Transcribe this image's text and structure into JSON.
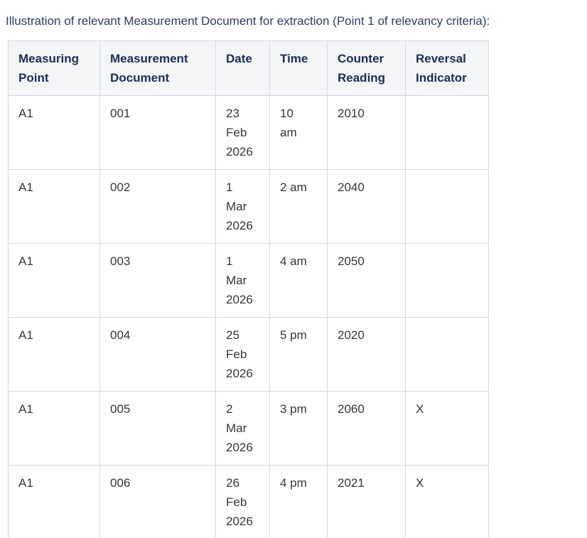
{
  "page": {
    "title": "Illustration of relevant Measurement Document for extraction (Point 1 of relevancy criteria):"
  },
  "colors": {
    "title_text": "#2a3d5e",
    "header_text": "#1a2d4f",
    "body_text": "#32363a",
    "header_background": "#f4f5f7",
    "table_border": "#d3d8dd"
  },
  "table": {
    "columns": [
      {
        "key": "measuring_point",
        "label": "Measuring Point"
      },
      {
        "key": "measurement_document",
        "label": "Measurement Document"
      },
      {
        "key": "date",
        "label": "Date"
      },
      {
        "key": "time",
        "label": "Time"
      },
      {
        "key": "counter_reading",
        "label": "Counter Reading"
      },
      {
        "key": "reversal_indicator",
        "label": "Reversal Indicator"
      }
    ],
    "rows": [
      {
        "measuring_point": "A1",
        "measurement_document": "001",
        "date": "23\nFeb\n2026",
        "time": "10\nam",
        "counter_reading": "2010",
        "reversal_indicator": ""
      },
      {
        "measuring_point": "A1",
        "measurement_document": "002",
        "date": "1\nMar\n2026",
        "time": "2 am",
        "counter_reading": "2040",
        "reversal_indicator": ""
      },
      {
        "measuring_point": "A1",
        "measurement_document": "003",
        "date": "1\nMar\n2026",
        "time": "4 am",
        "counter_reading": "2050",
        "reversal_indicator": ""
      },
      {
        "measuring_point": "A1",
        "measurement_document": "004",
        "date": "25\nFeb\n2026",
        "time": "5 pm",
        "counter_reading": "2020",
        "reversal_indicator": ""
      },
      {
        "measuring_point": "A1",
        "measurement_document": "005",
        "date": "2\nMar\n2026",
        "time": "3 pm",
        "counter_reading": "2060",
        "reversal_indicator": "X"
      },
      {
        "measuring_point": "A1",
        "measurement_document": "006",
        "date": "26\nFeb\n2026",
        "time": "4 pm",
        "counter_reading": "2021",
        "reversal_indicator": "X"
      }
    ]
  }
}
